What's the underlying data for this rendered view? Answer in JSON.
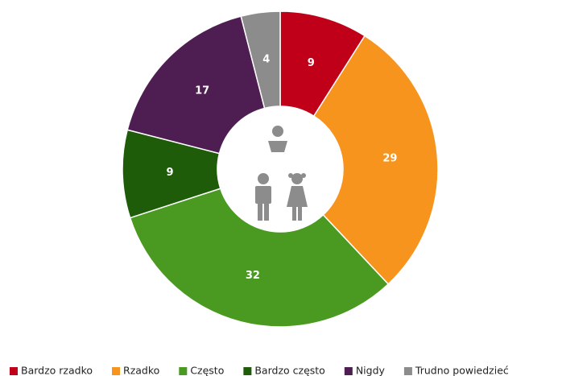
{
  "chart_data": {
    "type": "donut",
    "categories": [
      "Bardzo rzadko",
      "Rzadko",
      "Często",
      "Bardzo często",
      "Nigdy",
      "Trudno powiedzieć"
    ],
    "values": [
      9,
      29,
      32,
      9,
      17,
      4
    ],
    "colors": [
      "#c00018",
      "#f7941d",
      "#4a9a22",
      "#1e5c0a",
      "#4e1e52",
      "#8c8c8c"
    ],
    "legend": "bottom"
  }
}
